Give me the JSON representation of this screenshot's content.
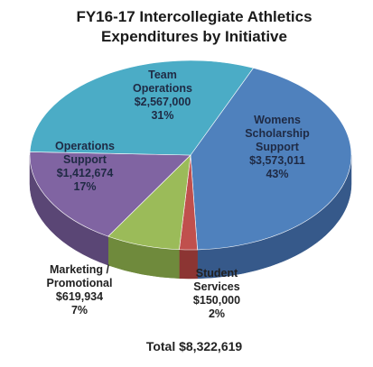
{
  "chart_data": {
    "type": "pie",
    "title_line1": "FY16-17 Intercollegiate Athletics",
    "title_line2": "Expenditures by Initiative",
    "total_label": "Total $8,322,619",
    "slices": [
      {
        "name_lines": [
          "Womens",
          "Scholarship",
          "Support"
        ],
        "amount": "$3,573,011",
        "percent": "43%",
        "value": 3573011,
        "color": "#4f81bd",
        "side_color": "#36598a"
      },
      {
        "name_lines": [
          "Student",
          "Services"
        ],
        "amount": "$150,000",
        "percent": "2%",
        "value": 150000,
        "color": "#c0504d",
        "side_color": "#8c3533"
      },
      {
        "name_lines": [
          "Marketing /",
          "Promotional"
        ],
        "amount": "$619,934",
        "percent": "7%",
        "value": 619934,
        "color": "#9bbb59",
        "side_color": "#6f8a3c"
      },
      {
        "name_lines": [
          "Operations",
          "Support"
        ],
        "amount": "$1,412,674",
        "percent": "17%",
        "value": 1412674,
        "color": "#8064a2",
        "side_color": "#5a4675"
      },
      {
        "name_lines": [
          "Team",
          "Operations"
        ],
        "amount": "$2,567,000",
        "percent": "31%",
        "value": 2567000,
        "color": "#4bacc6",
        "side_color": "#33819a"
      }
    ]
  }
}
